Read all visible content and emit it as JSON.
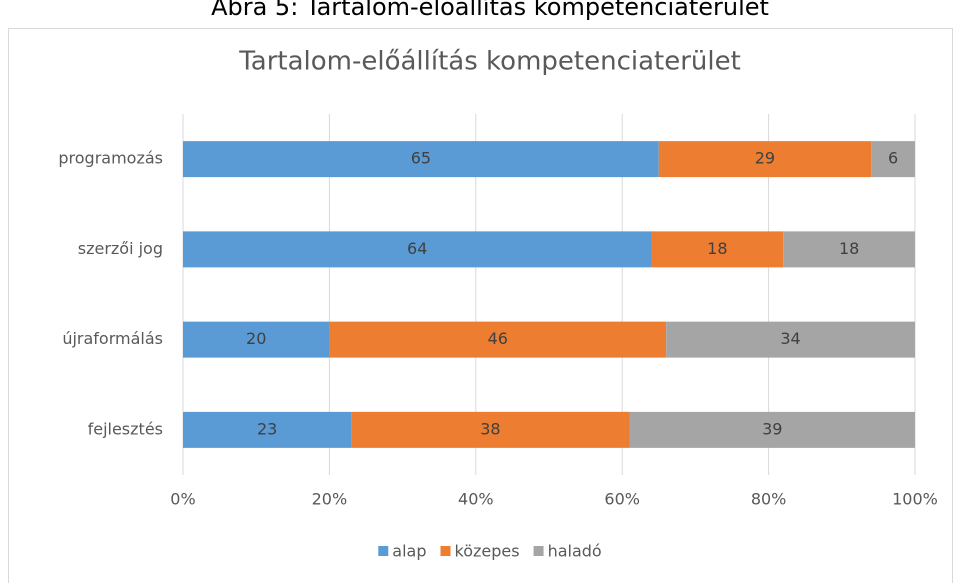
{
  "caption": "Ábra 5: Tartalom-előállítás kompetenciaterület",
  "chart_data": {
    "type": "stacked_bar_horizontal",
    "title": "Tartalom-előállítás kompetenciaterület",
    "categories": [
      "programozás",
      "szerzői jog",
      "újraformálás",
      "fejlesztés"
    ],
    "series": [
      {
        "name": "alap",
        "color": "#5b9bd5",
        "values": [
          65,
          64,
          20,
          23
        ]
      },
      {
        "name": "közepes",
        "color": "#ed7d31",
        "values": [
          29,
          18,
          46,
          38
        ]
      },
      {
        "name": "haladó",
        "color": "#a5a5a5",
        "values": [
          6,
          18,
          34,
          39
        ]
      }
    ],
    "xlim": [
      0,
      100
    ],
    "xticks": [
      {
        "value": 0,
        "label": "0%"
      },
      {
        "value": 20,
        "label": "20%"
      },
      {
        "value": 40,
        "label": "40%"
      },
      {
        "value": 60,
        "label": "60%"
      },
      {
        "value": 80,
        "label": "80%"
      },
      {
        "value": 100,
        "label": "100%"
      }
    ],
    "grid": true,
    "legend": "bottom"
  }
}
